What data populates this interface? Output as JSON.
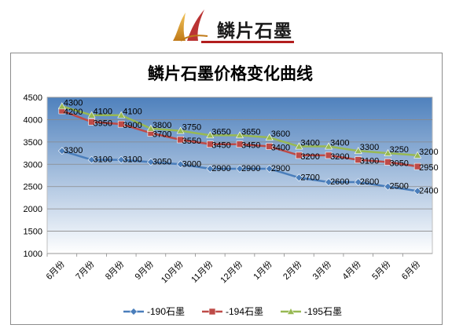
{
  "brand": {
    "name": "鳞片石墨"
  },
  "colors": {
    "series": [
      "#4a7ebb",
      "#be4b48",
      "#98b954"
    ],
    "plot_gradient_top": "#4f81bd",
    "plot_gradient_bottom": "#ffffff",
    "brand_rule": "#b21e1e"
  },
  "chart_data": {
    "type": "line",
    "title": "鳞片石墨价格变化曲线",
    "xlabel": "",
    "ylabel": "",
    "categories": [
      "6月份",
      "7月份",
      "8月份",
      "9月份",
      "10月份",
      "11月份",
      "12月份",
      "1月份",
      "2月份",
      "3月份",
      "4月份",
      "5月份",
      "6月份"
    ],
    "ylim": [
      1000,
      4500
    ],
    "yticks": [
      1000,
      1500,
      2000,
      2500,
      3000,
      3500,
      4000,
      4500
    ],
    "grid": true,
    "legend_position": "bottom",
    "series": [
      {
        "name": "-190石墨",
        "marker": "diamond",
        "values": [
          3300,
          3100,
          3100,
          3050,
          3000,
          2900,
          2900,
          2900,
          2700,
          2600,
          2600,
          2500,
          2400
        ]
      },
      {
        "name": "-194石墨",
        "marker": "square",
        "values": [
          4200,
          3950,
          3900,
          3700,
          3550,
          3450,
          3450,
          3400,
          3200,
          3200,
          3100,
          3050,
          2950
        ]
      },
      {
        "name": "-195石墨",
        "marker": "triangle",
        "values": [
          4300,
          4100,
          4100,
          3800,
          3750,
          3650,
          3650,
          3600,
          3400,
          3400,
          3300,
          3250,
          3200
        ]
      }
    ]
  }
}
